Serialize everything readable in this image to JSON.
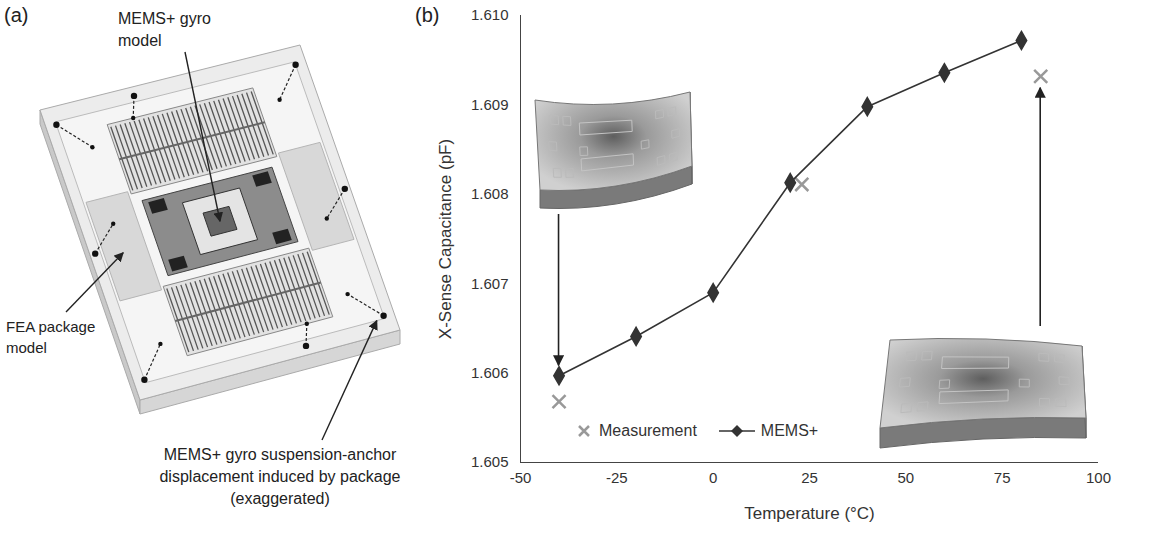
{
  "panel_a": {
    "label": "(a)",
    "annotations": [
      {
        "lines": [
          "MEMS+ gyro",
          "model"
        ]
      },
      {
        "lines": [
          "FEA package",
          "model"
        ]
      },
      {
        "lines": [
          "MEMS+ gyro suspension-anchor",
          "displacement induced by package",
          "(exaggerated)"
        ]
      }
    ]
  },
  "chart_data": {
    "panel_label": "(b)",
    "type": "line",
    "x_label": "Temperature (°C)",
    "y_label": "X-Sense Capacitance (pF)",
    "xlim": [
      -50,
      100
    ],
    "xticks": [
      -50,
      -25,
      0,
      25,
      50,
      75,
      100
    ],
    "ylim": [
      1.605,
      1.61
    ],
    "yticks": [
      1.605,
      1.606,
      1.607,
      1.608,
      1.609,
      {
        "value": 1.61,
        "label": "1.610"
      }
    ],
    "legend": "bottom",
    "series": [
      {
        "name": "Measurement",
        "type": "scatter",
        "marker": "x",
        "color": "#999999",
        "x": [
          -40,
          23,
          85
        ],
        "values": [
          1.60568,
          1.60811,
          1.60932
        ]
      },
      {
        "name": "MEMS+",
        "type": "line",
        "marker": "diamond",
        "color": "#333333",
        "x": [
          -40,
          -20,
          0,
          20,
          40,
          60,
          80
        ],
        "values": [
          1.60597,
          1.60641,
          1.6069,
          1.60813,
          1.60898,
          1.60936,
          1.60972
        ]
      }
    ]
  }
}
